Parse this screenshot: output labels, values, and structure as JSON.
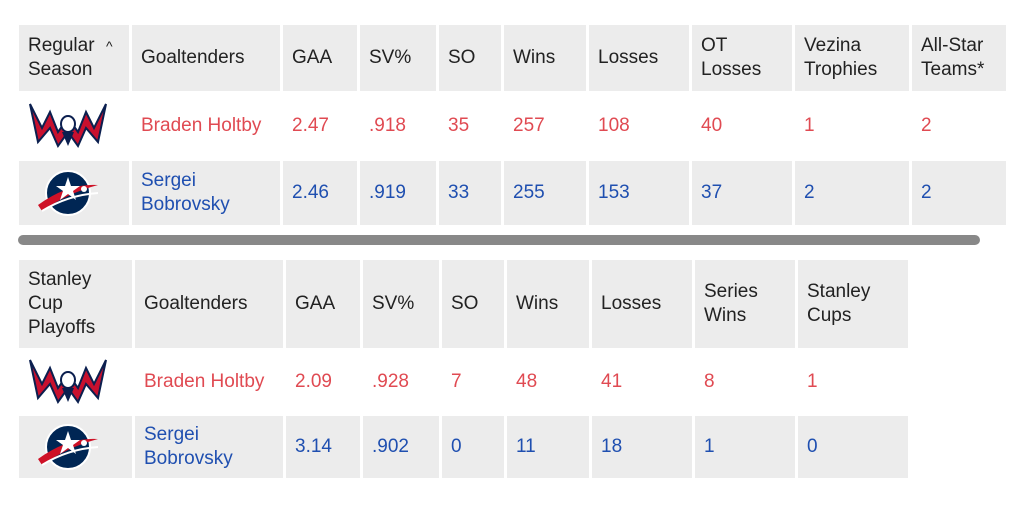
{
  "regular": {
    "corner_label": "Regular Season",
    "sort_caret": "^",
    "headers": [
      "Goaltenders",
      "GAA",
      "SV%",
      "SO",
      "Wins",
      "Losses",
      "OT Losses",
      "Vezina Trophies",
      "All-Star Teams*"
    ],
    "rows": [
      {
        "team": "capitals-logo",
        "name": "Braden Holtby",
        "cells": [
          "2.47",
          ".918",
          "35",
          "257",
          "108",
          "40",
          "1",
          "2"
        ]
      },
      {
        "team": "blue-jackets-logo",
        "name": "Sergei Bobrovsky",
        "cells": [
          "2.46",
          ".919",
          "33",
          "255",
          "153",
          "37",
          "2",
          "2"
        ]
      }
    ]
  },
  "playoffs": {
    "corner_label": "Stanley Cup Playoffs",
    "headers": [
      "Goaltenders",
      "GAA",
      "SV%",
      "SO",
      "Wins",
      "Losses",
      "Series Wins",
      "Stanley Cups"
    ],
    "rows": [
      {
        "team": "capitals-logo",
        "name": "Braden Holtby",
        "cells": [
          "2.09",
          ".928",
          "7",
          "48",
          "41",
          "8",
          "1"
        ]
      },
      {
        "team": "blue-jackets-logo",
        "name": "Sergei Bobrovsky",
        "cells": [
          "3.14",
          ".902",
          "0",
          "11",
          "18",
          "1",
          "0"
        ]
      }
    ]
  },
  "colors": {
    "capitals_red": "#e04a52",
    "jackets_blue": "#1f4fb0",
    "header_bg": "#ececec"
  }
}
